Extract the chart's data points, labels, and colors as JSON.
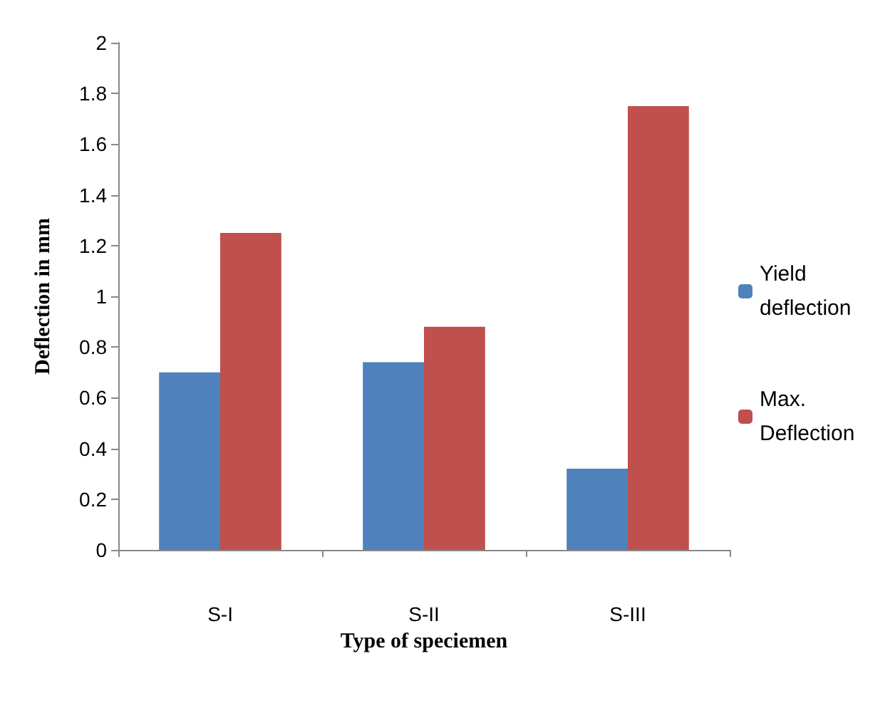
{
  "chart_data": {
    "type": "bar",
    "xlabel": "Type of speciemen",
    "ylabel": "Deflection in mm",
    "categories": [
      "S-I",
      "S-II",
      "S-III"
    ],
    "series": [
      {
        "name": "Yield deflection",
        "color": "#4f81bd",
        "values": [
          0.7,
          0.74,
          0.32
        ]
      },
      {
        "name": "Max. Deflection",
        "color": "#c0504d",
        "values": [
          1.25,
          0.88,
          1.75
        ]
      }
    ],
    "ylim": [
      0,
      2
    ],
    "yticks": [
      0,
      0.2,
      0.4,
      0.6,
      0.8,
      1,
      1.2,
      1.4,
      1.6,
      1.8,
      2
    ],
    "grid": false,
    "legend": "right"
  }
}
